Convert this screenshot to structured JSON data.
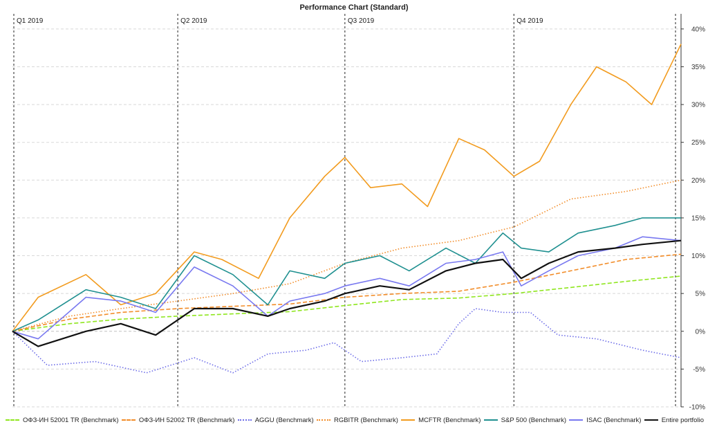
{
  "chart_data": {
    "type": "line",
    "title": "Performance Chart (Standard)",
    "x_range": [
      "2019-01-01",
      "2019-12-31"
    ],
    "ylim": [
      -10,
      42
    ],
    "y_ticks": [
      "40%",
      "35%",
      "30%",
      "25%",
      "20%",
      "15%",
      "10%",
      "5%",
      "0%",
      "-5%",
      "-10%"
    ],
    "y_tick_values": [
      40,
      35,
      30,
      25,
      20,
      15,
      10,
      5,
      0,
      -5,
      -10
    ],
    "quarter_markers": [
      {
        "label": "Q1 2019",
        "date": "2019-01-01"
      },
      {
        "label": "Q2 2019",
        "date": "2019-04-01"
      },
      {
        "label": "Q3 2019",
        "date": "2019-07-01"
      },
      {
        "label": "Q4 2019",
        "date": "2019-10-01"
      }
    ],
    "grid": "horizontal-dashed",
    "legend_position": "bottom",
    "series": [
      {
        "name": "ОФЗ-ИН 52001 TR (Benchmark)",
        "color": "#8fe61e",
        "style": "dashed",
        "dates": [
          "2019-01-01",
          "2019-02-01",
          "2019-03-01",
          "2019-04-01",
          "2019-05-01",
          "2019-06-01",
          "2019-07-01",
          "2019-08-01",
          "2019-09-01",
          "2019-10-01",
          "2019-11-01",
          "2019-12-01",
          "2019-12-31"
        ],
        "values": [
          0,
          1.0,
          1.6,
          2.0,
          2.3,
          2.6,
          3.4,
          4.2,
          4.4,
          5.0,
          5.8,
          6.6,
          7.3
        ]
      },
      {
        "name": "ОФЗ-ИН 52002 TR (Benchmark)",
        "color": "#f28c28",
        "style": "dashed",
        "dates": [
          "2019-01-01",
          "2019-02-01",
          "2019-03-01",
          "2019-04-01",
          "2019-05-01",
          "2019-06-01",
          "2019-07-01",
          "2019-08-01",
          "2019-09-01",
          "2019-10-01",
          "2019-11-01",
          "2019-12-01",
          "2019-12-31"
        ],
        "values": [
          0,
          1.6,
          2.5,
          3.0,
          3.3,
          3.6,
          4.5,
          5.0,
          5.3,
          6.5,
          8.0,
          9.5,
          10.2
        ]
      },
      {
        "name": "AGGU (Benchmark)",
        "color": "#6b6be8",
        "style": "dotted",
        "dates": [
          "2019-01-01",
          "2019-01-20",
          "2019-02-15",
          "2019-03-15",
          "2019-04-10",
          "2019-05-01",
          "2019-05-20",
          "2019-06-10",
          "2019-06-25",
          "2019-07-10",
          "2019-08-01",
          "2019-08-20",
          "2019-09-01",
          "2019-09-10",
          "2019-09-25",
          "2019-10-10",
          "2019-10-25",
          "2019-11-15",
          "2019-12-10",
          "2019-12-31"
        ],
        "values": [
          0,
          -4.5,
          -4.0,
          -5.5,
          -3.5,
          -5.5,
          -3.0,
          -2.5,
          -1.5,
          -4.0,
          -3.5,
          -3.0,
          1.0,
          3.0,
          2.5,
          2.5,
          -0.5,
          -1.0,
          -2.5,
          -3.5
        ]
      },
      {
        "name": "RGBITR (Benchmark)",
        "color": "#f28c28",
        "style": "dotted",
        "dates": [
          "2019-01-01",
          "2019-02-01",
          "2019-03-01",
          "2019-04-01",
          "2019-05-01",
          "2019-06-01",
          "2019-07-01",
          "2019-08-01",
          "2019-09-01",
          "2019-10-01",
          "2019-11-01",
          "2019-12-01",
          "2019-12-31"
        ],
        "values": [
          0,
          2.0,
          3.0,
          4.0,
          5.0,
          6.3,
          9.0,
          11.0,
          12.0,
          13.8,
          17.5,
          18.5,
          20.0
        ]
      },
      {
        "name": "MCFTR (Benchmark)",
        "color": "#f29b1e",
        "style": "solid",
        "dates": [
          "2019-01-01",
          "2019-01-15",
          "2019-02-10",
          "2019-03-01",
          "2019-03-20",
          "2019-04-10",
          "2019-04-25",
          "2019-05-15",
          "2019-06-01",
          "2019-06-20",
          "2019-07-01",
          "2019-07-15",
          "2019-08-01",
          "2019-08-15",
          "2019-09-01",
          "2019-09-15",
          "2019-10-01",
          "2019-10-15",
          "2019-11-01",
          "2019-11-15",
          "2019-12-01",
          "2019-12-15",
          "2019-12-31"
        ],
        "values": [
          0,
          4.5,
          7.5,
          3.5,
          5.0,
          10.5,
          9.5,
          7.0,
          15.0,
          20.5,
          23.0,
          19.0,
          19.5,
          16.5,
          25.5,
          24.0,
          20.5,
          22.5,
          30.0,
          35.0,
          33.0,
          30.0,
          38.0
        ]
      },
      {
        "name": "S&P 500 (Benchmark)",
        "color": "#1f9090",
        "style": "solid",
        "dates": [
          "2019-01-01",
          "2019-01-15",
          "2019-02-10",
          "2019-03-01",
          "2019-03-20",
          "2019-04-10",
          "2019-05-01",
          "2019-05-20",
          "2019-06-01",
          "2019-06-20",
          "2019-07-01",
          "2019-07-20",
          "2019-08-05",
          "2019-08-25",
          "2019-09-10",
          "2019-09-25",
          "2019-10-05",
          "2019-10-20",
          "2019-11-05",
          "2019-11-25",
          "2019-12-10",
          "2019-12-31"
        ],
        "values": [
          0,
          1.5,
          5.5,
          4.5,
          3.0,
          10.0,
          7.5,
          3.5,
          8.0,
          7.0,
          9.0,
          10.0,
          8.0,
          11.0,
          9.0,
          13.0,
          11.0,
          10.5,
          13.0,
          14.0,
          15.0,
          15.0
        ]
      },
      {
        "name": "ISAC (Benchmark)",
        "color": "#7878f0",
        "style": "solid",
        "dates": [
          "2019-01-01",
          "2019-01-15",
          "2019-02-10",
          "2019-03-01",
          "2019-03-20",
          "2019-04-10",
          "2019-05-01",
          "2019-05-20",
          "2019-06-01",
          "2019-06-20",
          "2019-07-01",
          "2019-07-20",
          "2019-08-05",
          "2019-08-25",
          "2019-09-10",
          "2019-09-25",
          "2019-10-05",
          "2019-10-20",
          "2019-11-05",
          "2019-11-25",
          "2019-12-10",
          "2019-12-31"
        ],
        "values": [
          0,
          -1.0,
          4.5,
          4.0,
          2.5,
          8.5,
          6.0,
          2.0,
          4.0,
          5.0,
          6.0,
          7.0,
          6.0,
          9.0,
          9.5,
          10.5,
          6.0,
          8.0,
          10.0,
          11.0,
          12.5,
          12.0
        ]
      },
      {
        "name": "Entire portfolio",
        "color": "#111111",
        "style": "solid-thick",
        "dates": [
          "2019-01-01",
          "2019-01-15",
          "2019-02-10",
          "2019-03-01",
          "2019-03-20",
          "2019-04-10",
          "2019-05-01",
          "2019-05-20",
          "2019-06-01",
          "2019-06-20",
          "2019-07-01",
          "2019-07-20",
          "2019-08-05",
          "2019-08-25",
          "2019-09-10",
          "2019-09-25",
          "2019-10-05",
          "2019-10-20",
          "2019-11-05",
          "2019-11-25",
          "2019-12-10",
          "2019-12-31"
        ],
        "values": [
          0,
          -2.0,
          0.0,
          1.0,
          -0.5,
          3.0,
          3.0,
          2.0,
          3.0,
          4.0,
          5.0,
          6.0,
          5.5,
          8.0,
          9.0,
          9.5,
          7.0,
          9.0,
          10.5,
          11.0,
          11.5,
          12.0
        ]
      }
    ]
  }
}
